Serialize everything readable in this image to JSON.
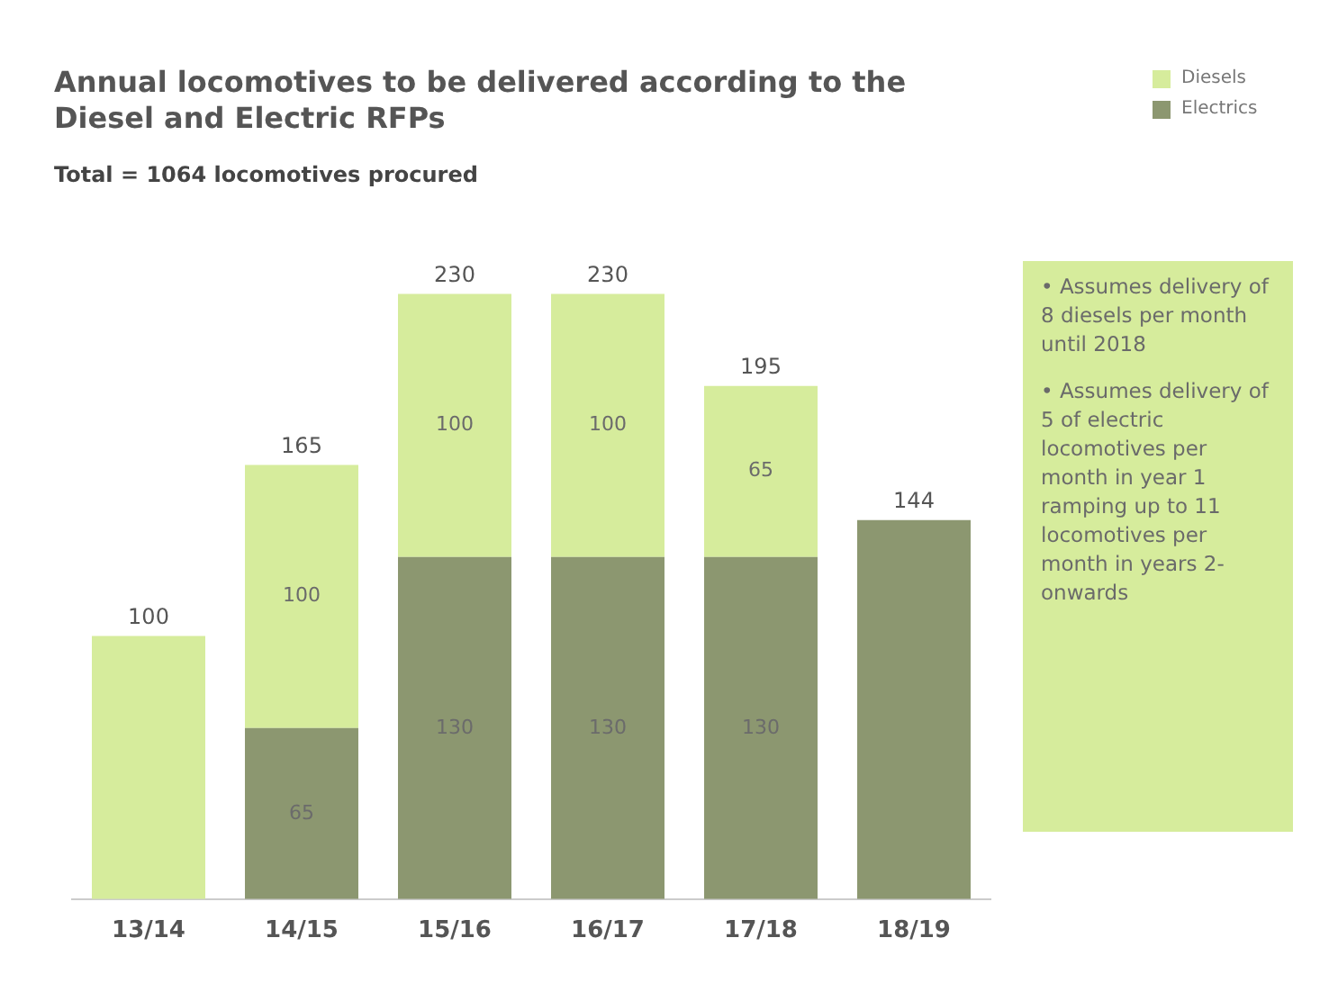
{
  "chart_data": {
    "type": "bar",
    "title": "Annual locomotives to be delivered according to the Diesel and Electric RFPs",
    "subtitle": "Total = 1064 locomotives procured",
    "categories": [
      "13/14",
      "14/15",
      "15/16",
      "16/17",
      "17/18",
      "18/19"
    ],
    "stacked": true,
    "series": [
      {
        "name": "Electrics",
        "color": "#8c9770",
        "values": [
          0,
          65,
          130,
          130,
          130,
          144
        ],
        "value_labels": [
          null,
          "65",
          "130",
          "130",
          "130",
          null
        ]
      },
      {
        "name": "Diesels",
        "color": "#d6ec9c",
        "values": [
          100,
          100,
          100,
          100,
          65,
          0
        ],
        "value_labels": [
          null,
          "100",
          "100",
          "100",
          "65",
          null
        ]
      }
    ],
    "totals": [
      "100",
      "165",
      "230",
      "230",
      "195",
      "144"
    ],
    "legend": "top right",
    "grid": false,
    "annotations": [
      "• Assumes delivery of 8 diesels per month until 2018",
      "• Assumes delivery of 5 of electric locomotives per month in year 1 ramping up to 11 locomotives per month in years 2-onwards"
    ]
  }
}
